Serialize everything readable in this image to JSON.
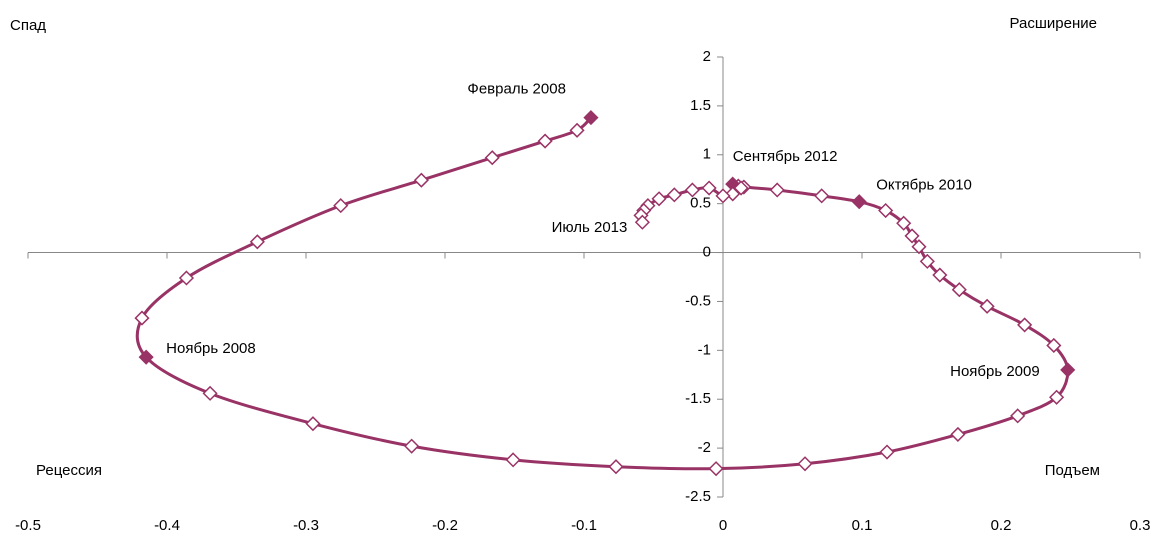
{
  "chart_data": {
    "type": "line",
    "quadrant_labels": {
      "top_left": "Спад",
      "top_right": "Расширение",
      "bottom_left": "Рецессия",
      "bottom_right": "Подъем"
    },
    "series": [
      {
        "color": "#993366",
        "x": [
          -0.095,
          -0.105,
          -0.128,
          -0.166,
          -0.217,
          -0.275,
          -0.335,
          -0.386,
          -0.418,
          -0.415,
          -0.369,
          -0.295,
          -0.224,
          -0.151,
          -0.077,
          -0.005,
          0.059,
          0.118,
          0.169,
          0.212,
          0.24,
          0.248,
          0.238,
          0.217,
          0.19,
          0.17,
          0.156,
          0.147,
          0.141,
          0.136,
          0.13,
          0.117,
          0.098,
          0.071,
          0.039,
          0.015,
          0.011,
          0.007,
          0.013,
          0.007,
          0.0,
          -0.01,
          -0.022,
          -0.035,
          -0.046,
          -0.054,
          -0.057,
          -0.059,
          -0.058
        ],
        "values": [
          1.38,
          1.25,
          1.14,
          0.97,
          0.74,
          0.48,
          0.11,
          -0.26,
          -0.67,
          -1.07,
          -1.44,
          -1.75,
          -1.98,
          -2.12,
          -2.19,
          -2.21,
          -2.16,
          -2.04,
          -1.86,
          -1.67,
          -1.48,
          -1.2,
          -0.95,
          -0.74,
          -0.55,
          -0.38,
          -0.23,
          -0.09,
          0.06,
          0.17,
          0.3,
          0.43,
          0.52,
          0.58,
          0.64,
          0.67,
          0.68,
          0.7,
          0.66,
          0.6,
          0.58,
          0.66,
          0.64,
          0.59,
          0.55,
          0.48,
          0.43,
          0.38,
          0.31
        ],
        "point_labels": [
          "Февраль 2008",
          null,
          null,
          null,
          null,
          null,
          null,
          null,
          null,
          "Ноябрь 2008",
          null,
          null,
          null,
          null,
          null,
          null,
          null,
          null,
          null,
          null,
          null,
          "Ноябрь 2009",
          null,
          null,
          null,
          null,
          null,
          null,
          null,
          null,
          null,
          null,
          "Октябрь 2010",
          null,
          null,
          null,
          null,
          "Сентябрь 2012",
          null,
          null,
          null,
          null,
          null,
          null,
          null,
          null,
          null,
          null,
          "Июль 2013"
        ],
        "filled_markers": [
          0,
          9,
          21,
          32,
          37
        ]
      }
    ],
    "xlim": [
      -0.5,
      0.3
    ],
    "xticks": [
      -0.5,
      -0.4,
      -0.3,
      -0.2,
      -0.1,
      0,
      0.1,
      0.2,
      0.3
    ],
    "ylim": [
      -2.5,
      2
    ],
    "yticks": [
      -2.5,
      -2,
      -1.5,
      -1,
      -0.5,
      0,
      0.5,
      1,
      1.5,
      2
    ]
  }
}
